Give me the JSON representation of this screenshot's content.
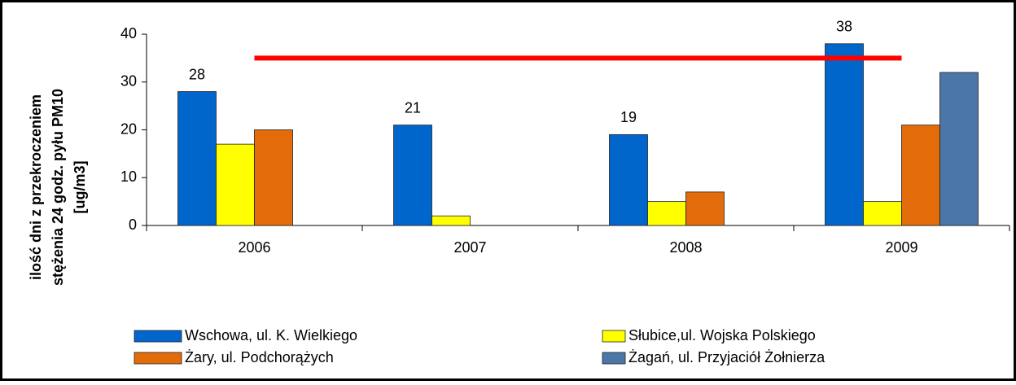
{
  "chart_data": {
    "type": "bar",
    "y_label": [
      "ilość dni z przekroczeniem",
      "stężenia 24 godz. pyłu PM10",
      "[ug/m3]"
    ],
    "categories": [
      "2006",
      "2007",
      "2008",
      "2009"
    ],
    "series": [
      {
        "name": "Wschowa, ul. K. Wielkiego",
        "color": "#0066cc",
        "values": [
          28,
          21,
          19,
          38
        ],
        "data_labels": true
      },
      {
        "name": "Słubice,ul. Wojska Polskiego",
        "color": "#ffff00",
        "values": [
          17,
          2,
          5,
          5
        ]
      },
      {
        "name": "Żary, ul. Podchorążych",
        "color": "#e36c0a",
        "values": [
          20,
          null,
          7,
          21
        ]
      },
      {
        "name": "Żagań, ul. Przyjaciół Żołnierza",
        "color": "#4a76a8",
        "values": [
          null,
          null,
          null,
          32
        ]
      }
    ],
    "reference_line": {
      "value": 35,
      "color": "#ff0000"
    },
    "ylim": [
      0,
      40
    ],
    "yticks": [
      0,
      10,
      20,
      30,
      40
    ],
    "grid": false
  }
}
